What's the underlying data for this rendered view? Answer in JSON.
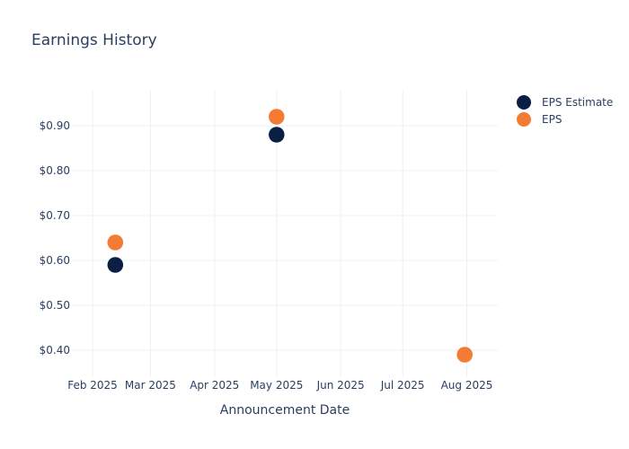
{
  "chart_data": {
    "type": "scatter",
    "title": "Earnings History",
    "xlabel": "Announcement Date",
    "ylabel": "",
    "x_ticks": [
      "Feb 2025",
      "Mar 2025",
      "Apr 2025",
      "May 2025",
      "Jun 2025",
      "Jul 2025",
      "Aug 2025"
    ],
    "x_tick_dates": [
      "2025-02-01",
      "2025-03-01",
      "2025-04-01",
      "2025-05-01",
      "2025-06-01",
      "2025-07-01",
      "2025-08-01"
    ],
    "xlim": [
      "2025-01-22",
      "2025-08-16"
    ],
    "y_ticks": [
      "$0.40",
      "$0.50",
      "$0.60",
      "$0.70",
      "$0.80",
      "$0.90"
    ],
    "y_tick_values": [
      0.4,
      0.5,
      0.6,
      0.7,
      0.8,
      0.9
    ],
    "ylim": [
      0.34,
      0.98
    ],
    "grid": true,
    "legend_position": "top-right",
    "series": [
      {
        "name": "EPS Estimate",
        "color": "#0b1f44",
        "points": [
          {
            "x": "2025-02-12",
            "y": 0.59
          },
          {
            "x": "2025-05-01",
            "y": 0.88
          },
          {
            "x": "2025-07-31",
            "y": 0.39
          }
        ]
      },
      {
        "name": "EPS",
        "color": "#f47b34",
        "points": [
          {
            "x": "2025-02-12",
            "y": 0.64
          },
          {
            "x": "2025-05-01",
            "y": 0.92
          },
          {
            "x": "2025-07-31",
            "y": 0.39
          }
        ]
      }
    ]
  }
}
